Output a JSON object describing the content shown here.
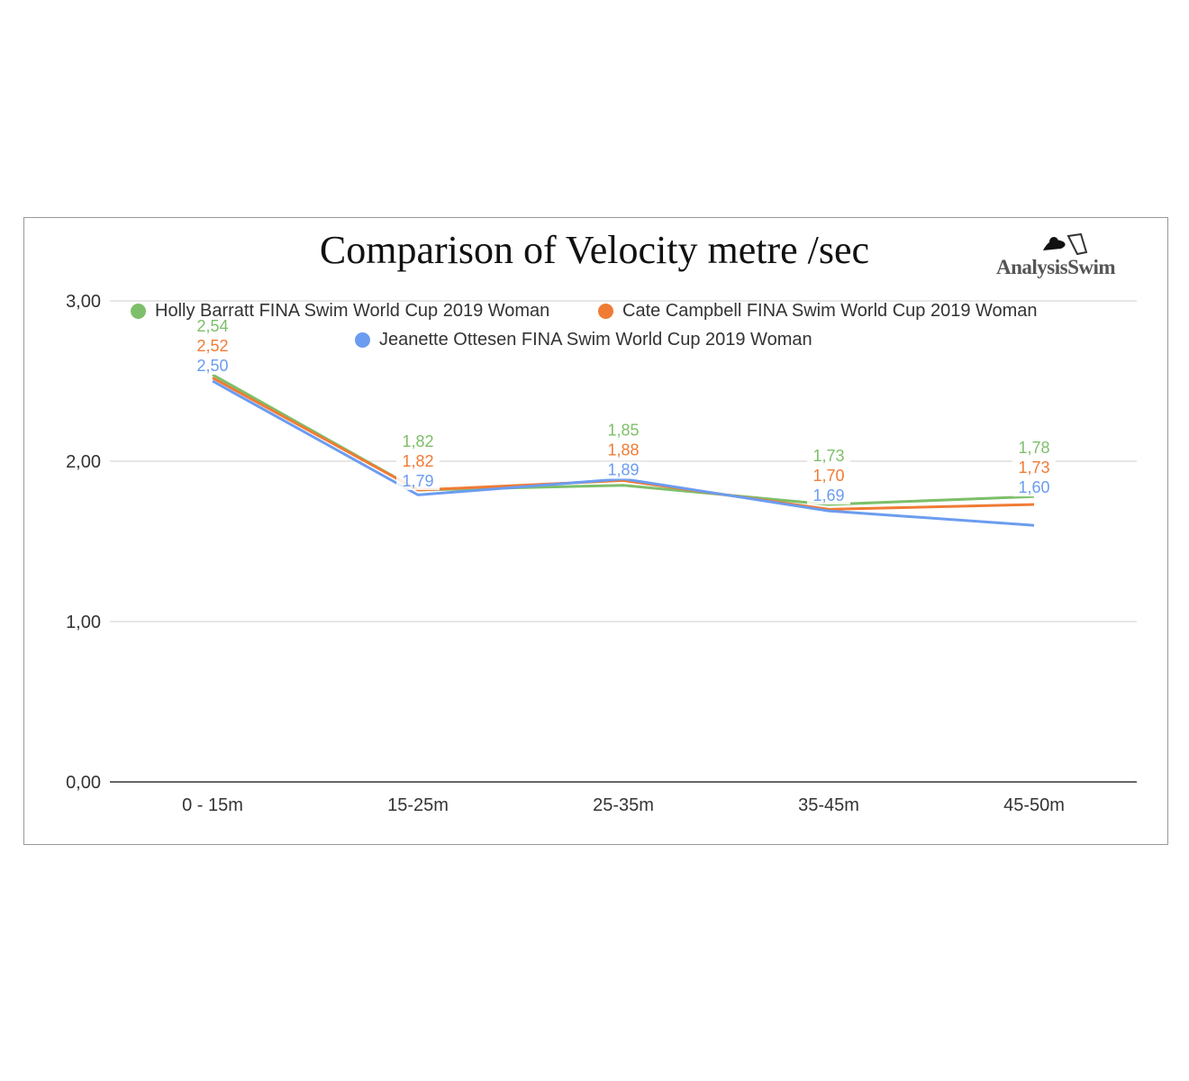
{
  "chart_data": {
    "type": "line",
    "title": "Comparison of Velocity metre /sec",
    "logo_text": "AnalysisSwim",
    "categories": [
      "0 - 15m",
      "15-25m",
      "25-35m",
      "35-45m",
      "45-50m"
    ],
    "yticks": [
      "0,00",
      "1,00",
      "2,00",
      "3,00"
    ],
    "ylim": [
      0,
      3
    ],
    "grid": true,
    "legend_position": "top",
    "series": [
      {
        "name": "Holly Barratt FINA Swim World Cup 2019 Woman",
        "color": "#7dbf6a",
        "values": [
          2.54,
          1.82,
          1.85,
          1.73,
          1.78
        ]
      },
      {
        "name": "Cate Campbell FINA Swim World Cup 2019 Woman",
        "color": "#f07b35",
        "values": [
          2.52,
          1.82,
          1.88,
          1.7,
          1.73
        ]
      },
      {
        "name": "Jeanette Ottesen FINA Swim World Cup 2019 Woman",
        "color": "#6b9cf0",
        "values": [
          2.5,
          1.79,
          1.89,
          1.69,
          1.6
        ]
      }
    ]
  }
}
